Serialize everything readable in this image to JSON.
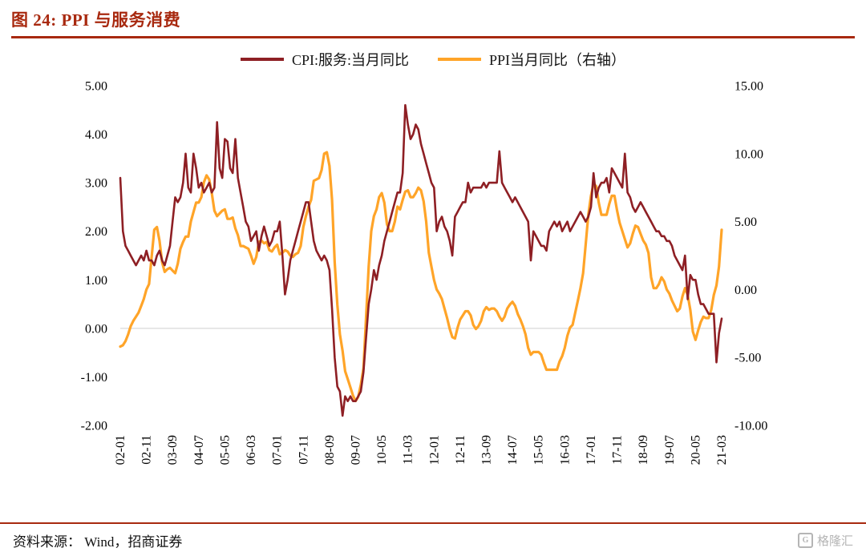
{
  "header": {
    "title": "图 24:  PPI 与服务消费"
  },
  "legend": [
    {
      "label": "CPI:服务:当月同比"
    },
    {
      "label": "PPI当月同比（右轴）"
    }
  ],
  "footer": {
    "source": "资料来源：  Wind，招商证券"
  },
  "watermark": {
    "icon": "G",
    "label": "格隆汇"
  },
  "colors": {
    "accent": "#a8290f",
    "cpi_line": "#8e1f24",
    "ppi_line": "#ffa428",
    "zero_gridline": "#d9d9d9"
  },
  "chart_data": {
    "type": "line",
    "title": "PPI 与服务消费",
    "xlabel": "",
    "ylabel": "",
    "legend_position": "top",
    "grid": "zero-line-only",
    "x_start": "02-01",
    "x_end": "21-03",
    "frequency": "monthly",
    "x_tick_labels": [
      "02-01",
      "02-11",
      "03-09",
      "04-07",
      "05-05",
      "06-03",
      "07-01",
      "07-11",
      "08-09",
      "09-07",
      "10-05",
      "11-03",
      "12-01",
      "12-11",
      "13-09",
      "14-07",
      "15-05",
      "16-03",
      "17-01",
      "17-11",
      "18-09",
      "19-07",
      "20-05",
      "21-03"
    ],
    "x_tick_step": 10,
    "left_axis": {
      "ticks": [
        5.0,
        4.0,
        3.0,
        2.0,
        1.0,
        0.0,
        -1.0,
        -2.0
      ],
      "range": [
        -2,
        5
      ]
    },
    "right_axis": {
      "ticks": [
        15.0,
        10.0,
        5.0,
        0.0,
        -5.0,
        -10.0
      ],
      "range": [
        -10,
        15
      ]
    },
    "series": [
      {
        "name": "CPI:服务:当月同比",
        "axis": "left",
        "color": "#8e1f24",
        "values": [
          3.1,
          2.0,
          1.7,
          1.6,
          1.5,
          1.4,
          1.3,
          1.4,
          1.5,
          1.4,
          1.6,
          1.4,
          1.4,
          1.3,
          1.5,
          1.6,
          1.4,
          1.3,
          1.5,
          1.7,
          2.2,
          2.7,
          2.6,
          2.7,
          3.0,
          3.6,
          2.9,
          2.8,
          3.6,
          3.3,
          2.9,
          3.0,
          2.8,
          2.9,
          3.0,
          2.8,
          2.9,
          4.25,
          3.3,
          3.1,
          3.9,
          3.85,
          3.3,
          3.2,
          3.9,
          3.1,
          2.8,
          2.5,
          2.2,
          2.1,
          1.8,
          1.9,
          2.0,
          1.6,
          1.9,
          2.1,
          1.9,
          1.7,
          1.8,
          2.0,
          2.0,
          2.2,
          1.5,
          0.7,
          1.0,
          1.4,
          1.6,
          1.8,
          2.0,
          2.2,
          2.4,
          2.6,
          2.6,
          2.2,
          1.8,
          1.6,
          1.5,
          1.4,
          1.5,
          1.4,
          1.2,
          0.4,
          -0.6,
          -1.2,
          -1.3,
          -1.8,
          -1.4,
          -1.5,
          -1.4,
          -1.5,
          -1.5,
          -1.4,
          -1.3,
          -0.9,
          -0.2,
          0.5,
          0.8,
          1.2,
          1.0,
          1.3,
          1.5,
          1.8,
          2.0,
          2.2,
          2.4,
          2.6,
          2.8,
          2.8,
          3.2,
          4.6,
          4.2,
          3.9,
          4.0,
          4.2,
          4.1,
          3.8,
          3.6,
          3.4,
          3.2,
          3.0,
          2.9,
          2.0,
          2.2,
          2.3,
          2.1,
          2.0,
          1.8,
          1.5,
          2.3,
          2.4,
          2.5,
          2.6,
          2.6,
          3.0,
          2.8,
          2.9,
          2.9,
          2.9,
          2.9,
          3.0,
          2.9,
          3.0,
          3.0,
          3.0,
          3.0,
          3.65,
          3.0,
          2.9,
          2.8,
          2.7,
          2.6,
          2.7,
          2.6,
          2.5,
          2.4,
          2.3,
          2.2,
          1.4,
          2.0,
          1.9,
          1.8,
          1.7,
          1.7,
          1.6,
          2.0,
          2.1,
          2.2,
          2.1,
          2.2,
          2.0,
          2.1,
          2.2,
          2.0,
          2.1,
          2.2,
          2.3,
          2.4,
          2.3,
          2.2,
          2.3,
          2.5,
          3.2,
          2.7,
          2.9,
          3.0,
          3.0,
          3.1,
          2.8,
          3.3,
          3.2,
          3.1,
          3.0,
          2.9,
          3.6,
          2.8,
          2.7,
          2.5,
          2.4,
          2.5,
          2.6,
          2.5,
          2.4,
          2.3,
          2.2,
          2.1,
          2.0,
          2.0,
          1.9,
          1.9,
          1.8,
          1.8,
          1.7,
          1.5,
          1.4,
          1.3,
          1.2,
          1.5,
          0.6,
          1.1,
          1.0,
          1.0,
          0.7,
          0.5,
          0.5,
          0.4,
          0.3,
          0.3,
          0.3,
          -0.7,
          -0.1,
          0.2
        ]
      },
      {
        "name": "PPI当月同比（右轴）",
        "axis": "right",
        "color": "#ffa428",
        "values": [
          -4.2,
          -4.1,
          -3.8,
          -3.3,
          -2.7,
          -2.3,
          -2.0,
          -1.7,
          -1.2,
          -0.7,
          0.0,
          0.4,
          2.4,
          4.4,
          4.6,
          3.6,
          2.0,
          1.3,
          1.5,
          1.6,
          1.4,
          1.2,
          1.9,
          3.0,
          3.5,
          3.9,
          3.9,
          5.0,
          5.7,
          6.4,
          6.4,
          6.8,
          7.9,
          8.4,
          8.1,
          7.1,
          5.8,
          5.4,
          5.6,
          5.8,
          5.9,
          5.2,
          5.2,
          5.3,
          4.5,
          4.0,
          3.2,
          3.2,
          3.1,
          3.0,
          2.5,
          1.9,
          2.4,
          3.5,
          3.6,
          3.4,
          3.5,
          2.9,
          2.8,
          3.1,
          3.3,
          2.6,
          2.7,
          2.9,
          2.8,
          2.5,
          2.4,
          2.6,
          2.7,
          3.2,
          4.6,
          5.4,
          6.1,
          6.6,
          8.0,
          8.1,
          8.2,
          8.8,
          10.0,
          10.1,
          9.1,
          6.6,
          2.0,
          -1.1,
          -3.3,
          -4.5,
          -6.0,
          -6.6,
          -7.2,
          -7.8,
          -8.2,
          -7.9,
          -7.0,
          -5.8,
          -2.1,
          1.7,
          4.3,
          5.4,
          5.9,
          6.8,
          7.1,
          6.4,
          4.8,
          4.3,
          4.3,
          5.0,
          6.1,
          5.9,
          6.6,
          7.2,
          7.3,
          6.8,
          6.8,
          7.1,
          7.5,
          7.3,
          6.5,
          5.0,
          2.7,
          1.7,
          0.7,
          0.0,
          -0.3,
          -0.7,
          -1.4,
          -2.1,
          -2.9,
          -3.5,
          -3.6,
          -2.8,
          -2.2,
          -1.9,
          -1.6,
          -1.6,
          -1.9,
          -2.6,
          -2.9,
          -2.7,
          -2.3,
          -1.6,
          -1.3,
          -1.5,
          -1.4,
          -1.4,
          -1.6,
          -2.0,
          -2.3,
          -2.0,
          -1.4,
          -1.1,
          -0.9,
          -1.2,
          -1.8,
          -2.2,
          -2.7,
          -3.3,
          -4.3,
          -4.8,
          -4.6,
          -4.6,
          -4.6,
          -4.8,
          -5.4,
          -5.9,
          -5.9,
          -5.9,
          -5.9,
          -5.9,
          -5.3,
          -4.9,
          -4.3,
          -3.4,
          -2.8,
          -2.6,
          -1.7,
          -0.8,
          0.1,
          1.2,
          3.3,
          5.5,
          6.9,
          7.8,
          7.6,
          6.4,
          5.5,
          5.5,
          5.5,
          6.3,
          6.9,
          6.9,
          5.8,
          4.9,
          4.3,
          3.7,
          3.1,
          3.4,
          4.1,
          4.7,
          4.6,
          4.1,
          3.6,
          3.3,
          2.7,
          0.9,
          0.1,
          0.1,
          0.4,
          0.9,
          0.6,
          0.0,
          -0.3,
          -0.8,
          -1.2,
          -1.6,
          -1.4,
          -0.5,
          0.1,
          -0.4,
          -1.5,
          -3.1,
          -3.7,
          -3.0,
          -2.4,
          -2.0,
          -2.1,
          -2.1,
          -1.5,
          -0.4,
          0.3,
          1.7,
          4.4
        ]
      }
    ]
  }
}
